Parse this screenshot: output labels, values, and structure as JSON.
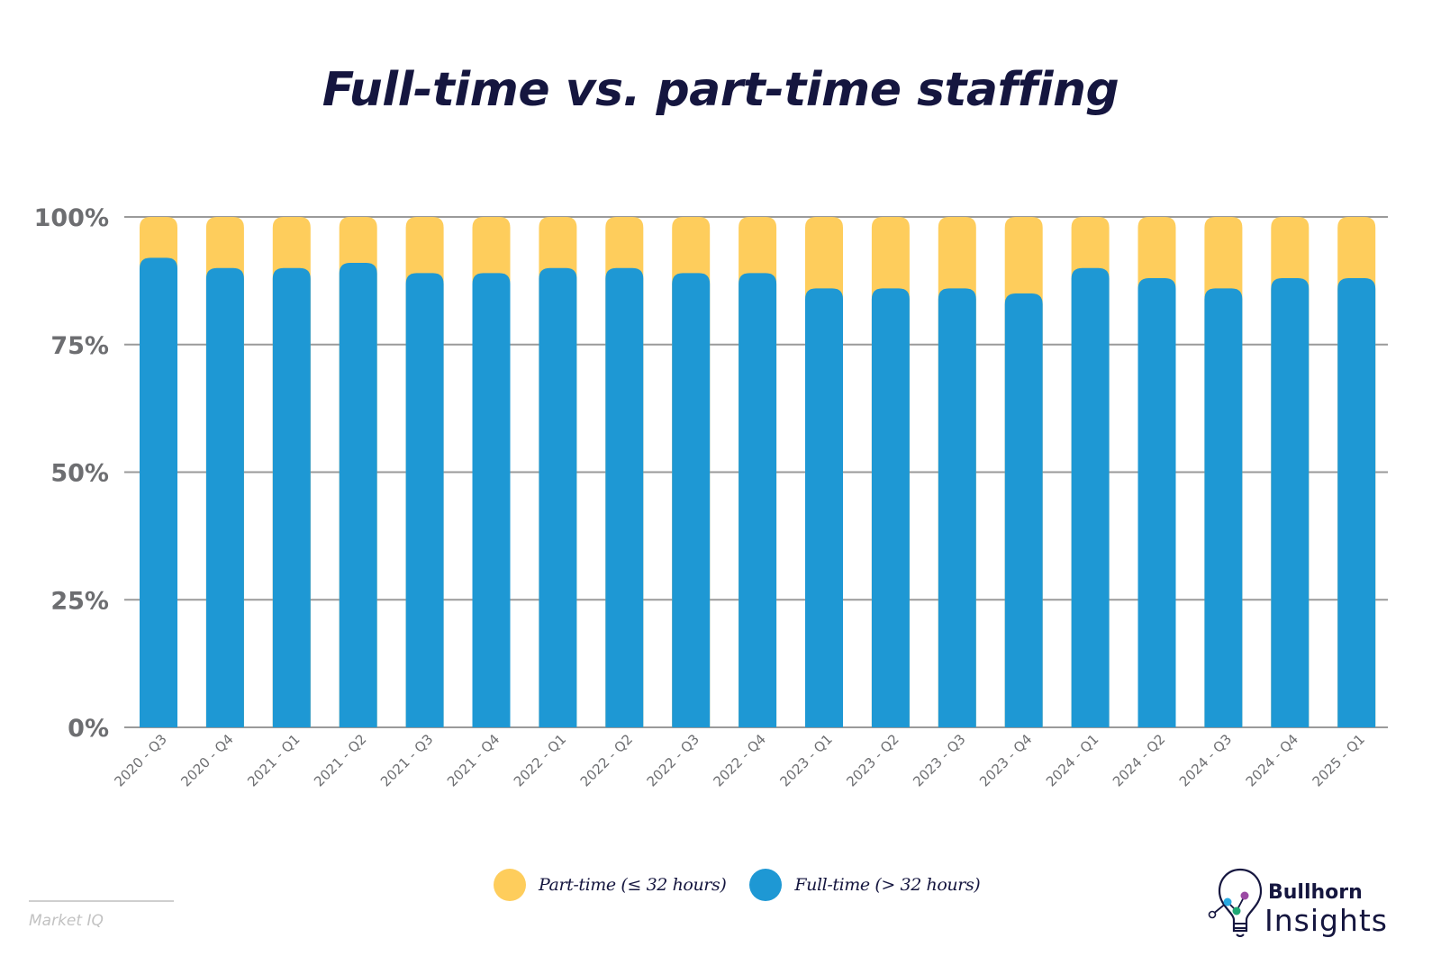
{
  "title": "Full-time vs. part-time staffing",
  "colors": {
    "part_time": "#fecd5c",
    "full_time": "#1e98d4",
    "grid": "#9a9a9a",
    "axis_text": "#6d6e71",
    "title": "#15163f"
  },
  "legend": {
    "part_time": "Part-time (≤ 32 hours)",
    "full_time": "Full-time (> 32 hours)"
  },
  "source": "Market IQ",
  "logo": {
    "line1": "Bullhorn",
    "line2": "Insights",
    "icon": "lightbulb-chart-icon"
  },
  "chart_data": {
    "type": "bar",
    "stacked": true,
    "title": "Full-time vs. part-time staffing",
    "xlabel": "",
    "ylabel": "",
    "ylim": [
      0,
      100
    ],
    "y_ticks": [
      "0%",
      "25%",
      "50%",
      "75%",
      "100%"
    ],
    "y_tick_values": [
      0,
      25,
      50,
      75,
      100
    ],
    "grid": true,
    "legend_position": "bottom",
    "categories": [
      "2020 - Q3",
      "2020 - Q4",
      "2021 - Q1",
      "2021 - Q2",
      "2021 - Q3",
      "2021 - Q4",
      "2022 - Q1",
      "2022 - Q2",
      "2022 - Q3",
      "2022 - Q4",
      "2023 - Q1",
      "2023 - Q2",
      "2023 - Q3",
      "2023 - Q4",
      "2024 - Q1",
      "2024 - Q2",
      "2024 - Q3",
      "2024 - Q4",
      "2025 - Q1"
    ],
    "series": [
      {
        "name": "Full-time (> 32 hours)",
        "values": [
          92,
          90,
          90,
          91,
          89,
          89,
          90,
          90,
          89,
          89,
          86,
          86,
          86,
          85,
          90,
          88,
          86,
          88,
          88
        ]
      },
      {
        "name": "Part-time (≤ 32 hours)",
        "values": [
          8,
          10,
          10,
          9,
          11,
          11,
          10,
          10,
          11,
          11,
          14,
          14,
          14,
          15,
          10,
          12,
          14,
          12,
          12
        ]
      }
    ]
  }
}
